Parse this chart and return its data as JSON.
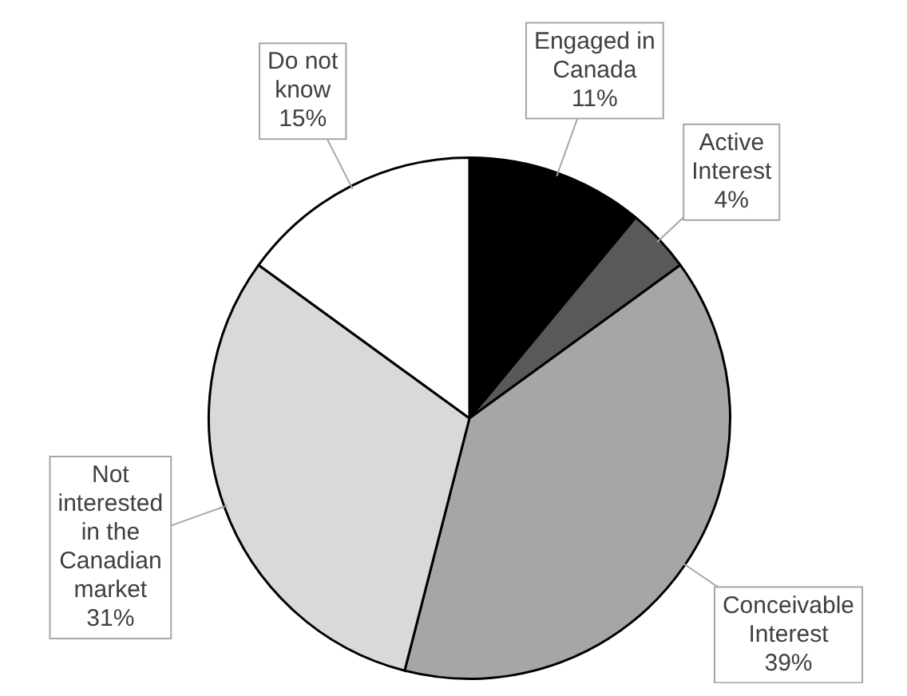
{
  "chart_data": {
    "type": "pie",
    "categories": [
      "Engaged in Canada",
      "Active Interest",
      "Conceivable Interest",
      "Not interested in the Canadian market",
      "Do not know"
    ],
    "values": [
      11,
      4,
      39,
      31,
      15
    ],
    "value_labels": [
      "11%",
      "4%",
      "39%",
      "31%",
      "15%"
    ],
    "colors": [
      "#000000",
      "#595959",
      "#a6a6a6",
      "#d9d9d9",
      "#ffffff"
    ],
    "legend": false
  }
}
